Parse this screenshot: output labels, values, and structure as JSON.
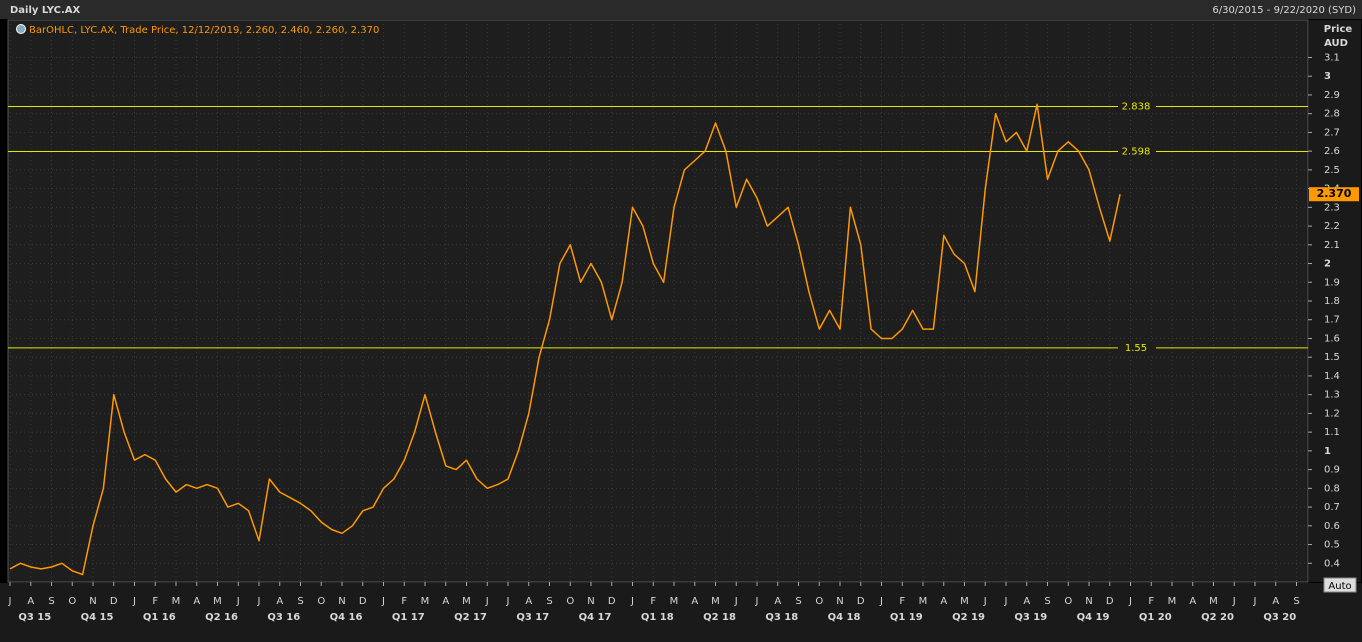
{
  "chart_data": {
    "type": "line",
    "title": "Daily LYC.AX",
    "subtitle": "6/30/2015 - 9/22/2020 (SYD)",
    "legend_text": "BarOHLC, LYC.AX, Trade Price, 12/12/2019, 2.260, 2.460, 2.260, 2.370",
    "y_label": "Price",
    "y_unit": "AUD",
    "button": "Auto",
    "color": "#ff9900",
    "level_color": "#e6e600",
    "grid": true,
    "categories": [
      "J",
      null,
      "A",
      null,
      "S",
      null,
      "O",
      null,
      "N",
      null,
      "D",
      null,
      "J",
      null,
      "F",
      null,
      "M",
      null,
      "A",
      null,
      "M",
      null,
      "J",
      null,
      "J",
      null,
      "A",
      null,
      "S",
      null,
      "O",
      null,
      "N",
      null,
      "D",
      null,
      "J",
      null,
      "F",
      null,
      "M",
      null,
      "A",
      null,
      "M",
      null,
      "J",
      null,
      "J",
      null,
      "A",
      null,
      "S",
      null,
      "O",
      null,
      "N",
      null,
      "D",
      null,
      "J",
      null,
      "F",
      null,
      "M",
      null,
      "A",
      null,
      "M",
      null,
      "J",
      null,
      "J",
      null,
      "A",
      null,
      "S",
      null,
      "O",
      null,
      "N",
      null,
      "D",
      null,
      "J",
      null,
      "F",
      null,
      "M",
      null,
      "A",
      null,
      "M",
      null,
      "J",
      null,
      "J",
      null,
      "A",
      null,
      "S",
      null,
      "O",
      null,
      "N",
      null,
      "D",
      null,
      "J",
      null,
      "F",
      null,
      "M",
      null,
      "A",
      null,
      "M",
      null,
      "J",
      null,
      "J",
      null,
      "A",
      null,
      "S",
      null
    ],
    "quarters": [
      "Q3 15",
      "Q4 15",
      "Q1 16",
      "Q2 16",
      "Q3 16",
      "Q4 16",
      "Q1 17",
      "Q2 17",
      "Q3 17",
      "Q4 17",
      "Q1 18",
      "Q2 18",
      "Q3 18",
      "Q4 18",
      "Q1 19",
      "Q2 19",
      "Q3 19",
      "Q4 19",
      "Q1 20",
      "Q2 20",
      "Q3 20"
    ],
    "values": [
      0.37,
      0.4,
      0.38,
      0.37,
      0.38,
      0.4,
      0.36,
      0.34,
      0.6,
      0.8,
      1.3,
      1.1,
      0.95,
      0.98,
      0.95,
      0.85,
      0.78,
      0.82,
      0.8,
      0.82,
      0.8,
      0.7,
      0.72,
      0.68,
      0.52,
      0.85,
      0.78,
      0.75,
      0.72,
      0.68,
      0.62,
      0.58,
      0.56,
      0.6,
      0.68,
      0.7,
      0.8,
      0.85,
      0.95,
      1.1,
      1.3,
      1.1,
      0.92,
      0.9,
      0.95,
      0.85,
      0.8,
      0.82,
      0.85,
      1.0,
      1.2,
      1.5,
      1.7,
      2.0,
      2.1,
      1.9,
      2.0,
      1.9,
      1.7,
      1.9,
      2.3,
      2.2,
      2.0,
      1.9,
      2.3,
      2.5,
      2.55,
      2.6,
      2.75,
      2.6,
      2.3,
      2.45,
      2.35,
      2.2,
      2.25,
      2.3,
      2.1,
      1.85,
      1.65,
      1.75,
      1.65,
      2.3,
      2.1,
      1.65,
      1.6,
      1.6,
      1.65,
      1.75,
      1.65,
      1.65,
      2.15,
      2.05,
      2.0,
      1.85,
      2.4,
      2.8,
      2.65,
      2.7,
      2.6,
      2.85,
      2.45,
      2.6,
      2.65,
      2.6,
      2.5,
      2.3,
      2.12,
      2.37,
      null,
      null,
      null,
      null,
      null,
      null,
      null,
      null,
      null,
      null,
      null,
      null,
      null,
      null,
      null,
      null,
      null,
      null
    ],
    "ylim": [
      0.3,
      3.3
    ],
    "yticks": [
      0.4,
      0.5,
      0.6,
      0.7,
      0.8,
      0.9,
      1,
      1.1,
      1.2,
      1.3,
      1.4,
      1.5,
      1.6,
      1.7,
      1.8,
      1.9,
      2,
      2.1,
      2.2,
      2.3,
      2.4,
      2.5,
      2.6,
      2.7,
      2.8,
      2.9,
      3,
      3.1
    ],
    "levels": [
      2.838,
      2.598,
      1.55
    ],
    "last_price": {
      "value": 2.37,
      "label": "2.370"
    }
  }
}
